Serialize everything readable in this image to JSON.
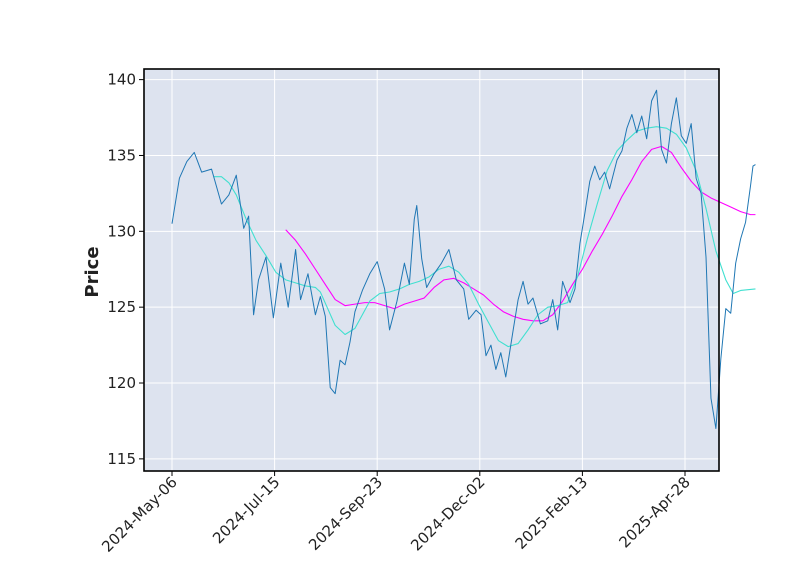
{
  "chart_data": {
    "type": "line",
    "title": "",
    "xlabel": "",
    "ylabel": "Price",
    "ylim": [
      114.2,
      140.7
    ],
    "yticks": [
      115,
      120,
      125,
      130,
      135,
      140
    ],
    "xticks": [
      "2024-May-06",
      "2024-Jul-15",
      "2024-Sep-23",
      "2024-Dec-02",
      "2025-Feb-13",
      "2025-Apr-28"
    ],
    "grid": true,
    "n_points": 250,
    "colors": {
      "background": "#dde3ef",
      "price": "#1f77b4",
      "ma_short": "#40e0d0",
      "ma_long": "#ff00ff",
      "grid": "#ffffff"
    },
    "series": [
      {
        "role": "price",
        "points": [
          [
            0,
            130.5
          ],
          [
            3,
            133.5
          ],
          [
            6,
            134.6
          ],
          [
            9,
            135.2
          ],
          [
            12,
            133.9
          ],
          [
            16,
            134.1
          ],
          [
            20,
            131.8
          ],
          [
            23,
            132.4
          ],
          [
            26,
            133.7
          ],
          [
            29,
            130.2
          ],
          [
            31,
            131.0
          ],
          [
            33,
            124.5
          ],
          [
            35,
            126.8
          ],
          [
            38,
            128.3
          ],
          [
            41,
            124.3
          ],
          [
            44,
            127.9
          ],
          [
            47,
            125.0
          ],
          [
            50,
            128.8
          ],
          [
            52,
            125.5
          ],
          [
            55,
            127.2
          ],
          [
            58,
            124.5
          ],
          [
            60,
            125.7
          ],
          [
            62,
            124.4
          ],
          [
            64,
            119.7
          ],
          [
            66,
            119.3
          ],
          [
            68,
            121.5
          ],
          [
            70,
            121.2
          ],
          [
            72,
            122.7
          ],
          [
            74,
            124.7
          ],
          [
            77,
            126.1
          ],
          [
            80,
            127.2
          ],
          [
            83,
            128.0
          ],
          [
            86,
            126.2
          ],
          [
            88,
            123.5
          ],
          [
            91,
            125.4
          ],
          [
            94,
            127.9
          ],
          [
            96,
            126.5
          ],
          [
            98,
            130.8
          ],
          [
            99,
            131.7
          ],
          [
            101,
            128.2
          ],
          [
            103,
            126.3
          ],
          [
            106,
            127.2
          ],
          [
            109,
            127.9
          ],
          [
            112,
            128.8
          ],
          [
            115,
            126.8
          ],
          [
            118,
            126.2
          ],
          [
            120,
            124.2
          ],
          [
            123,
            124.8
          ],
          [
            125,
            124.5
          ],
          [
            127,
            121.8
          ],
          [
            129,
            122.5
          ],
          [
            131,
            120.9
          ],
          [
            133,
            122.0
          ],
          [
            135,
            120.4
          ],
          [
            138,
            123.5
          ],
          [
            140,
            125.5
          ],
          [
            142,
            126.7
          ],
          [
            144,
            125.2
          ],
          [
            146,
            125.6
          ],
          [
            149,
            123.9
          ],
          [
            152,
            124.1
          ],
          [
            154,
            125.5
          ],
          [
            156,
            123.5
          ],
          [
            158,
            126.7
          ],
          [
            161,
            125.3
          ],
          [
            163,
            126.2
          ],
          [
            165,
            129.2
          ],
          [
            167,
            131.2
          ],
          [
            169,
            133.3
          ],
          [
            171,
            134.3
          ],
          [
            173,
            133.4
          ],
          [
            175,
            133.9
          ],
          [
            177,
            132.8
          ],
          [
            180,
            134.7
          ],
          [
            182,
            135.3
          ],
          [
            184,
            136.8
          ],
          [
            186,
            137.7
          ],
          [
            188,
            136.5
          ],
          [
            190,
            137.6
          ],
          [
            192,
            136.1
          ],
          [
            194,
            138.6
          ],
          [
            196,
            139.3
          ],
          [
            198,
            135.4
          ],
          [
            200,
            134.5
          ],
          [
            202,
            137.1
          ],
          [
            204,
            138.8
          ],
          [
            206,
            136.3
          ],
          [
            208,
            135.8
          ],
          [
            210,
            137.1
          ],
          [
            212,
            133.5
          ],
          [
            214,
            132.5
          ],
          [
            216,
            128.3
          ],
          [
            218,
            119.0
          ],
          [
            220,
            117.0
          ],
          [
            222,
            121.6
          ],
          [
            224,
            124.9
          ],
          [
            226,
            124.6
          ],
          [
            228,
            127.9
          ],
          [
            230,
            129.5
          ],
          [
            232,
            130.6
          ],
          [
            234,
            133.0
          ],
          [
            235,
            134.3
          ],
          [
            236,
            134.4
          ]
        ]
      },
      {
        "role": "ma_short",
        "points": [
          [
            17,
            133.6
          ],
          [
            20,
            133.6
          ],
          [
            23,
            133.2
          ],
          [
            26,
            132.4
          ],
          [
            30,
            130.8
          ],
          [
            34,
            129.4
          ],
          [
            38,
            128.4
          ],
          [
            42,
            127.3
          ],
          [
            46,
            126.8
          ],
          [
            50,
            126.6
          ],
          [
            54,
            126.4
          ],
          [
            58,
            126.3
          ],
          [
            60,
            126.0
          ],
          [
            63,
            124.9
          ],
          [
            66,
            123.8
          ],
          [
            70,
            123.2
          ],
          [
            74,
            123.6
          ],
          [
            77,
            124.5
          ],
          [
            80,
            125.4
          ],
          [
            84,
            125.9
          ],
          [
            88,
            126.0
          ],
          [
            92,
            126.2
          ],
          [
            96,
            126.5
          ],
          [
            100,
            126.7
          ],
          [
            104,
            127.0
          ],
          [
            108,
            127.5
          ],
          [
            112,
            127.7
          ],
          [
            116,
            127.3
          ],
          [
            120,
            126.5
          ],
          [
            124,
            125.2
          ],
          [
            128,
            124.0
          ],
          [
            132,
            122.8
          ],
          [
            136,
            122.4
          ],
          [
            140,
            122.6
          ],
          [
            144,
            123.5
          ],
          [
            148,
            124.5
          ],
          [
            152,
            125.0
          ],
          [
            156,
            125.1
          ],
          [
            160,
            125.3
          ],
          [
            164,
            127.0
          ],
          [
            168,
            129.5
          ],
          [
            172,
            131.8
          ],
          [
            176,
            134.0
          ],
          [
            180,
            135.3
          ],
          [
            184,
            136.0
          ],
          [
            188,
            136.6
          ],
          [
            192,
            136.8
          ],
          [
            196,
            136.9
          ],
          [
            200,
            136.8
          ],
          [
            204,
            136.4
          ],
          [
            208,
            135.5
          ],
          [
            212,
            134.0
          ],
          [
            216,
            131.5
          ],
          [
            220,
            128.7
          ],
          [
            224,
            126.8
          ],
          [
            227,
            125.9
          ],
          [
            230,
            126.1
          ],
          [
            236,
            126.2
          ]
        ]
      },
      {
        "role": "ma_long",
        "points": [
          [
            46,
            130.1
          ],
          [
            50,
            129.4
          ],
          [
            54,
            128.5
          ],
          [
            58,
            127.5
          ],
          [
            62,
            126.5
          ],
          [
            66,
            125.5
          ],
          [
            70,
            125.1
          ],
          [
            74,
            125.2
          ],
          [
            78,
            125.3
          ],
          [
            82,
            125.3
          ],
          [
            86,
            125.1
          ],
          [
            90,
            124.9
          ],
          [
            94,
            125.2
          ],
          [
            98,
            125.4
          ],
          [
            102,
            125.6
          ],
          [
            106,
            126.3
          ],
          [
            110,
            126.8
          ],
          [
            114,
            126.9
          ],
          [
            118,
            126.6
          ],
          [
            122,
            126.2
          ],
          [
            126,
            125.8
          ],
          [
            130,
            125.2
          ],
          [
            134,
            124.7
          ],
          [
            138,
            124.4
          ],
          [
            142,
            124.2
          ],
          [
            146,
            124.1
          ],
          [
            150,
            124.1
          ],
          [
            154,
            124.5
          ],
          [
            158,
            125.4
          ],
          [
            162,
            126.5
          ],
          [
            166,
            127.5
          ],
          [
            170,
            128.7
          ],
          [
            174,
            129.8
          ],
          [
            178,
            131.0
          ],
          [
            182,
            132.3
          ],
          [
            186,
            133.4
          ],
          [
            190,
            134.6
          ],
          [
            194,
            135.4
          ],
          [
            198,
            135.6
          ],
          [
            202,
            135.2
          ],
          [
            206,
            134.2
          ],
          [
            210,
            133.3
          ],
          [
            214,
            132.6
          ],
          [
            218,
            132.2
          ],
          [
            222,
            131.9
          ],
          [
            226,
            131.6
          ],
          [
            230,
            131.3
          ],
          [
            234,
            131.1
          ],
          [
            236,
            131.1
          ]
        ]
      }
    ]
  }
}
